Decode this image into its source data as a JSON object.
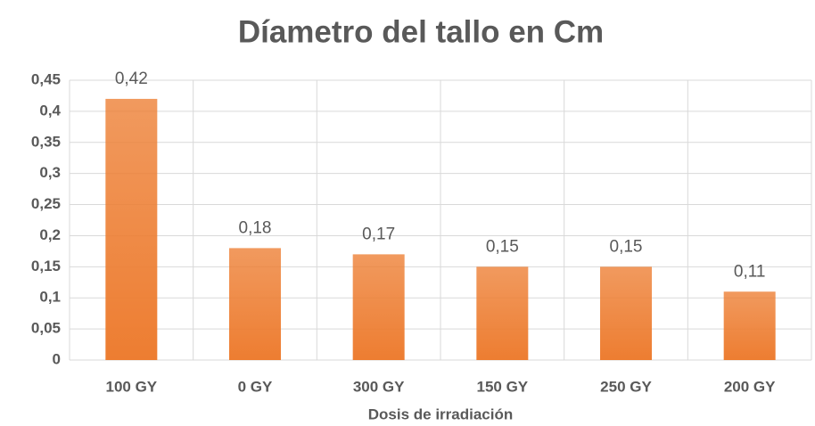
{
  "chart_data": {
    "type": "bar",
    "title": "Díametro del tallo en Cm",
    "x_label": "Dosis de irradiación",
    "categories": [
      "100 GY",
      "0 GY",
      "300 GY",
      "150 GY",
      "250 GY",
      "200 GY"
    ],
    "values": [
      0.42,
      0.18,
      0.17,
      0.15,
      0.15,
      0.11
    ],
    "value_labels": [
      "0,42",
      "0,18",
      "0,17",
      "0,15",
      "0,15",
      "0,11"
    ],
    "color": "#ed7d31",
    "ylim": [
      0,
      0.45
    ],
    "yticks": [
      0,
      {
        "value": 0.05,
        "label": "0,05"
      },
      {
        "value": 0.1,
        "label": "0,1"
      },
      {
        "value": 0.15,
        "label": "0,15"
      },
      {
        "value": 0.2,
        "label": "0,2"
      },
      {
        "value": 0.25,
        "label": "0,25"
      },
      {
        "value": 0.3,
        "label": "0,3"
      },
      {
        "value": 0.35,
        "label": "0,35"
      },
      {
        "value": 0.4,
        "label": "0,4"
      },
      {
        "value": 0.45,
        "label": "0,45"
      }
    ],
    "grid": true
  }
}
